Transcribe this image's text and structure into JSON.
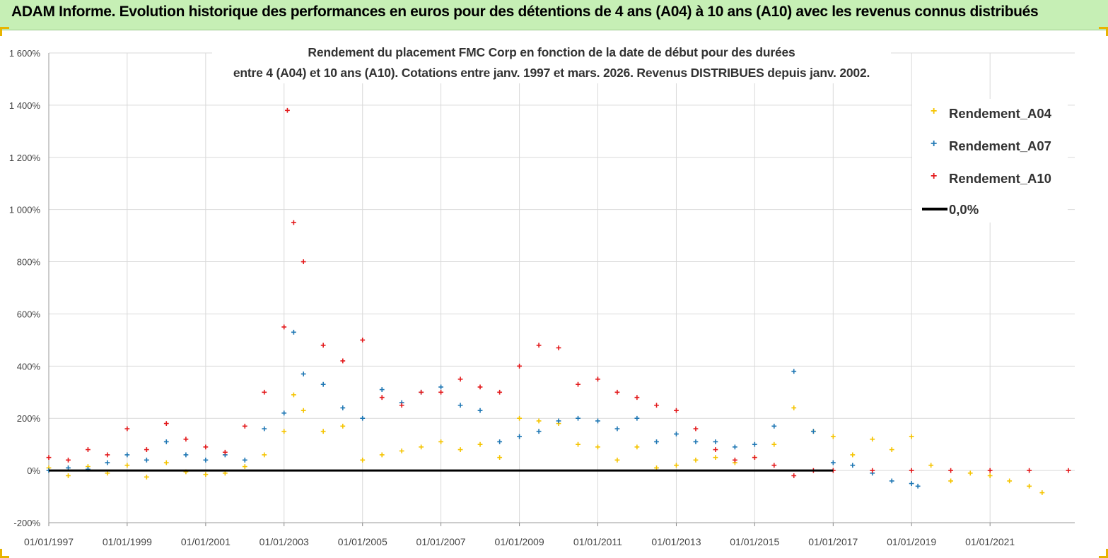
{
  "header": {
    "title": "ADAM Informe. Evolution historique des performances en euros pour des détentions de 4 ans (A04) à 10 ans (A10) avec les revenus connus distribués"
  },
  "chart_data": {
    "type": "scatter",
    "title_line1": "Rendement du placement FMC Corp en fonction de la date de début pour des durées",
    "title_line2": "entre 4 (A04) et 10 ans (A10).  Cotations entre janv. 1997 et mars. 2026. Revenus DISTRIBUES depuis janv. 2002.",
    "xlabel": "",
    "ylabel": "",
    "x_range": [
      "1997-01-01",
      "2023-03-01"
    ],
    "ylim": [
      -200,
      1600
    ],
    "y_ticks": [
      -200,
      0,
      200,
      400,
      600,
      800,
      1000,
      1200,
      1400,
      1600
    ],
    "y_tick_labels": [
      "-200%",
      "0%",
      "200%",
      "400%",
      "600%",
      "800%",
      "1 000%",
      "1 200%",
      "1 400%",
      "1 600%"
    ],
    "x_ticks": [
      "1997-01-01",
      "1999-01-01",
      "2001-01-01",
      "2003-01-01",
      "2005-01-01",
      "2007-01-01",
      "2009-01-01",
      "2011-01-01",
      "2013-01-01",
      "2015-01-01",
      "2017-01-01",
      "2019-01-01",
      "2021-01-01"
    ],
    "x_tick_labels": [
      "01/01/1997",
      "01/01/1999",
      "01/01/2001",
      "01/01/2003",
      "01/01/2005",
      "01/01/2007",
      "01/01/2009",
      "01/01/2011",
      "01/01/2013",
      "01/01/2015",
      "01/01/2017",
      "01/01/2019",
      "01/01/2021"
    ],
    "grid": true,
    "legend_position": "top-right",
    "series": [
      {
        "name": "Rendement_A04",
        "color": "#f5c400",
        "marker": "+",
        "x": [
          "1997-01-01",
          "1997-07-01",
          "1998-01-01",
          "1998-07-01",
          "1999-01-01",
          "1999-07-01",
          "2000-01-01",
          "2000-07-01",
          "2001-01-01",
          "2001-07-01",
          "2002-01-01",
          "2002-07-01",
          "2003-01-01",
          "2003-04-01",
          "2003-07-01",
          "2004-01-01",
          "2004-07-01",
          "2005-01-01",
          "2005-07-01",
          "2006-01-01",
          "2006-07-01",
          "2007-01-01",
          "2007-07-01",
          "2008-01-01",
          "2008-07-01",
          "2009-01-01",
          "2009-07-01",
          "2010-01-01",
          "2010-07-01",
          "2011-01-01",
          "2011-07-01",
          "2012-01-01",
          "2012-07-01",
          "2013-01-01",
          "2013-07-01",
          "2014-01-01",
          "2014-07-01",
          "2015-01-01",
          "2015-07-01",
          "2016-01-01",
          "2016-07-01",
          "2017-01-01",
          "2017-07-01",
          "2018-01-01",
          "2018-07-01",
          "2019-01-01",
          "2019-07-01",
          "2020-01-01",
          "2020-07-01",
          "2021-01-01",
          "2021-07-01",
          "2022-01-01",
          "2022-05-01"
        ],
        "y": [
          10,
          -20,
          15,
          -10,
          20,
          -25,
          30,
          -5,
          -15,
          -10,
          15,
          60,
          150,
          290,
          230,
          150,
          170,
          40,
          60,
          75,
          90,
          110,
          80,
          100,
          50,
          200,
          190,
          180,
          100,
          90,
          40,
          90,
          10,
          20,
          40,
          50,
          30,
          50,
          100,
          240,
          150,
          130,
          60,
          120,
          80,
          130,
          20,
          -40,
          -10,
          -20,
          -40,
          -60,
          -85
        ]
      },
      {
        "name": "Rendement_A07",
        "color": "#1f77b4",
        "marker": "+",
        "x": [
          "1997-01-01",
          "1997-07-01",
          "1998-01-01",
          "1998-07-01",
          "1999-01-01",
          "1999-07-01",
          "2000-01-01",
          "2000-07-01",
          "2001-01-01",
          "2001-07-01",
          "2002-01-01",
          "2002-07-01",
          "2003-01-01",
          "2003-04-01",
          "2003-07-01",
          "2004-01-01",
          "2004-07-01",
          "2005-01-01",
          "2005-07-01",
          "2006-01-01",
          "2006-07-01",
          "2007-01-01",
          "2007-07-01",
          "2008-01-01",
          "2008-07-01",
          "2009-01-01",
          "2009-07-01",
          "2010-01-01",
          "2010-07-01",
          "2011-01-01",
          "2011-07-01",
          "2012-01-01",
          "2012-07-01",
          "2013-01-01",
          "2013-07-01",
          "2014-01-01",
          "2014-07-01",
          "2015-01-01",
          "2015-07-01",
          "2016-01-01",
          "2016-07-01",
          "2017-01-01",
          "2017-07-01",
          "2018-01-01",
          "2018-07-01",
          "2019-01-01",
          "2019-03-01"
        ],
        "y": [
          0,
          10,
          5,
          30,
          60,
          40,
          110,
          60,
          40,
          60,
          40,
          160,
          220,
          530,
          370,
          330,
          240,
          200,
          310,
          260,
          300,
          320,
          250,
          230,
          110,
          130,
          150,
          190,
          200,
          190,
          160,
          200,
          110,
          140,
          110,
          110,
          90,
          100,
          170,
          380,
          150,
          30,
          20,
          -10,
          -40,
          -50,
          -60
        ]
      },
      {
        "name": "Rendement_A10",
        "color": "#e31a1c",
        "marker": "+",
        "x": [
          "1997-01-01",
          "1997-07-01",
          "1998-01-01",
          "1998-07-01",
          "1999-01-01",
          "1999-07-01",
          "2000-01-01",
          "2000-07-01",
          "2001-01-01",
          "2001-07-01",
          "2002-01-01",
          "2002-07-01",
          "2003-01-01",
          "2003-02-01",
          "2003-04-01",
          "2003-07-01",
          "2004-01-01",
          "2004-07-01",
          "2005-01-01",
          "2005-07-01",
          "2006-01-01",
          "2006-07-01",
          "2007-01-01",
          "2007-07-01",
          "2008-01-01",
          "2008-07-01",
          "2009-01-01",
          "2009-07-01",
          "2010-01-01",
          "2010-07-01",
          "2011-01-01",
          "2011-07-01",
          "2012-01-01",
          "2012-07-01",
          "2013-01-01",
          "2013-07-01",
          "2014-01-01",
          "2014-07-01",
          "2015-01-01",
          "2015-07-01",
          "2016-01-01",
          "2016-07-01",
          "2017-01-01",
          "2018-01-01",
          "2019-01-01",
          "2020-01-01",
          "2021-01-01",
          "2022-01-01",
          "2023-01-01"
        ],
        "y": [
          50,
          40,
          80,
          60,
          160,
          80,
          180,
          120,
          90,
          70,
          170,
          300,
          550,
          1380,
          950,
          800,
          480,
          420,
          500,
          280,
          250,
          300,
          300,
          350,
          320,
          300,
          400,
          480,
          470,
          330,
          350,
          300,
          280,
          250,
          230,
          160,
          80,
          40,
          50,
          20,
          -20,
          0,
          0,
          0,
          0,
          0,
          0,
          0,
          0
        ]
      },
      {
        "name": "0,0%",
        "color": "#000000",
        "marker": "line",
        "x": [
          "1997-01-01",
          "2017-01-01"
        ],
        "y": [
          0,
          0
        ]
      }
    ]
  }
}
